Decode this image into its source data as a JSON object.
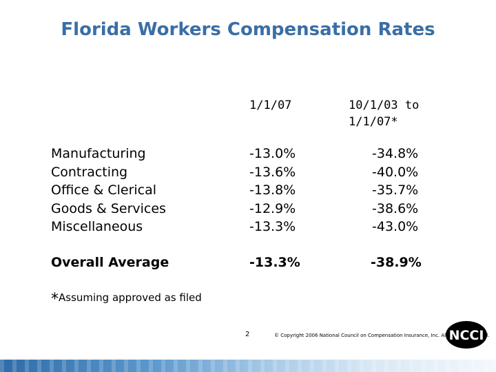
{
  "title": "Florida Workers Compensation Rates",
  "columns": {
    "col1": "1/1/07",
    "col2_line1": "10/1/03 to",
    "col2_line2": "1/1/07*"
  },
  "rows": [
    {
      "label": "Manufacturing",
      "v1": "-13.0%",
      "v2": "-34.8%"
    },
    {
      "label": "Contracting",
      "v1": "-13.6%",
      "v2": "-40.0%"
    },
    {
      "label": "Office & Clerical",
      "v1": "-13.8%",
      "v2": "-35.7%"
    },
    {
      "label": "Goods & Services",
      "v1": "-12.9%",
      "v2": "-38.6%"
    },
    {
      "label": "Miscellaneous",
      "v1": "-13.3%",
      "v2": "-43.0%"
    }
  ],
  "overall": {
    "label": "Overall Average",
    "v1": "-13.3%",
    "v2": "-38.9%"
  },
  "footnote": {
    "star": "*",
    "text": "Assuming approved as filed"
  },
  "page_number": "2",
  "copyright": "© Copyright 2006 National Council on Compensation Insurance, Inc. All Rights Reserved.",
  "logo": {
    "text": "NCCI",
    "icon": "ncci-logo-icon"
  },
  "colors": {
    "title": "#3a6ea5",
    "band": "#2d6ca8"
  }
}
